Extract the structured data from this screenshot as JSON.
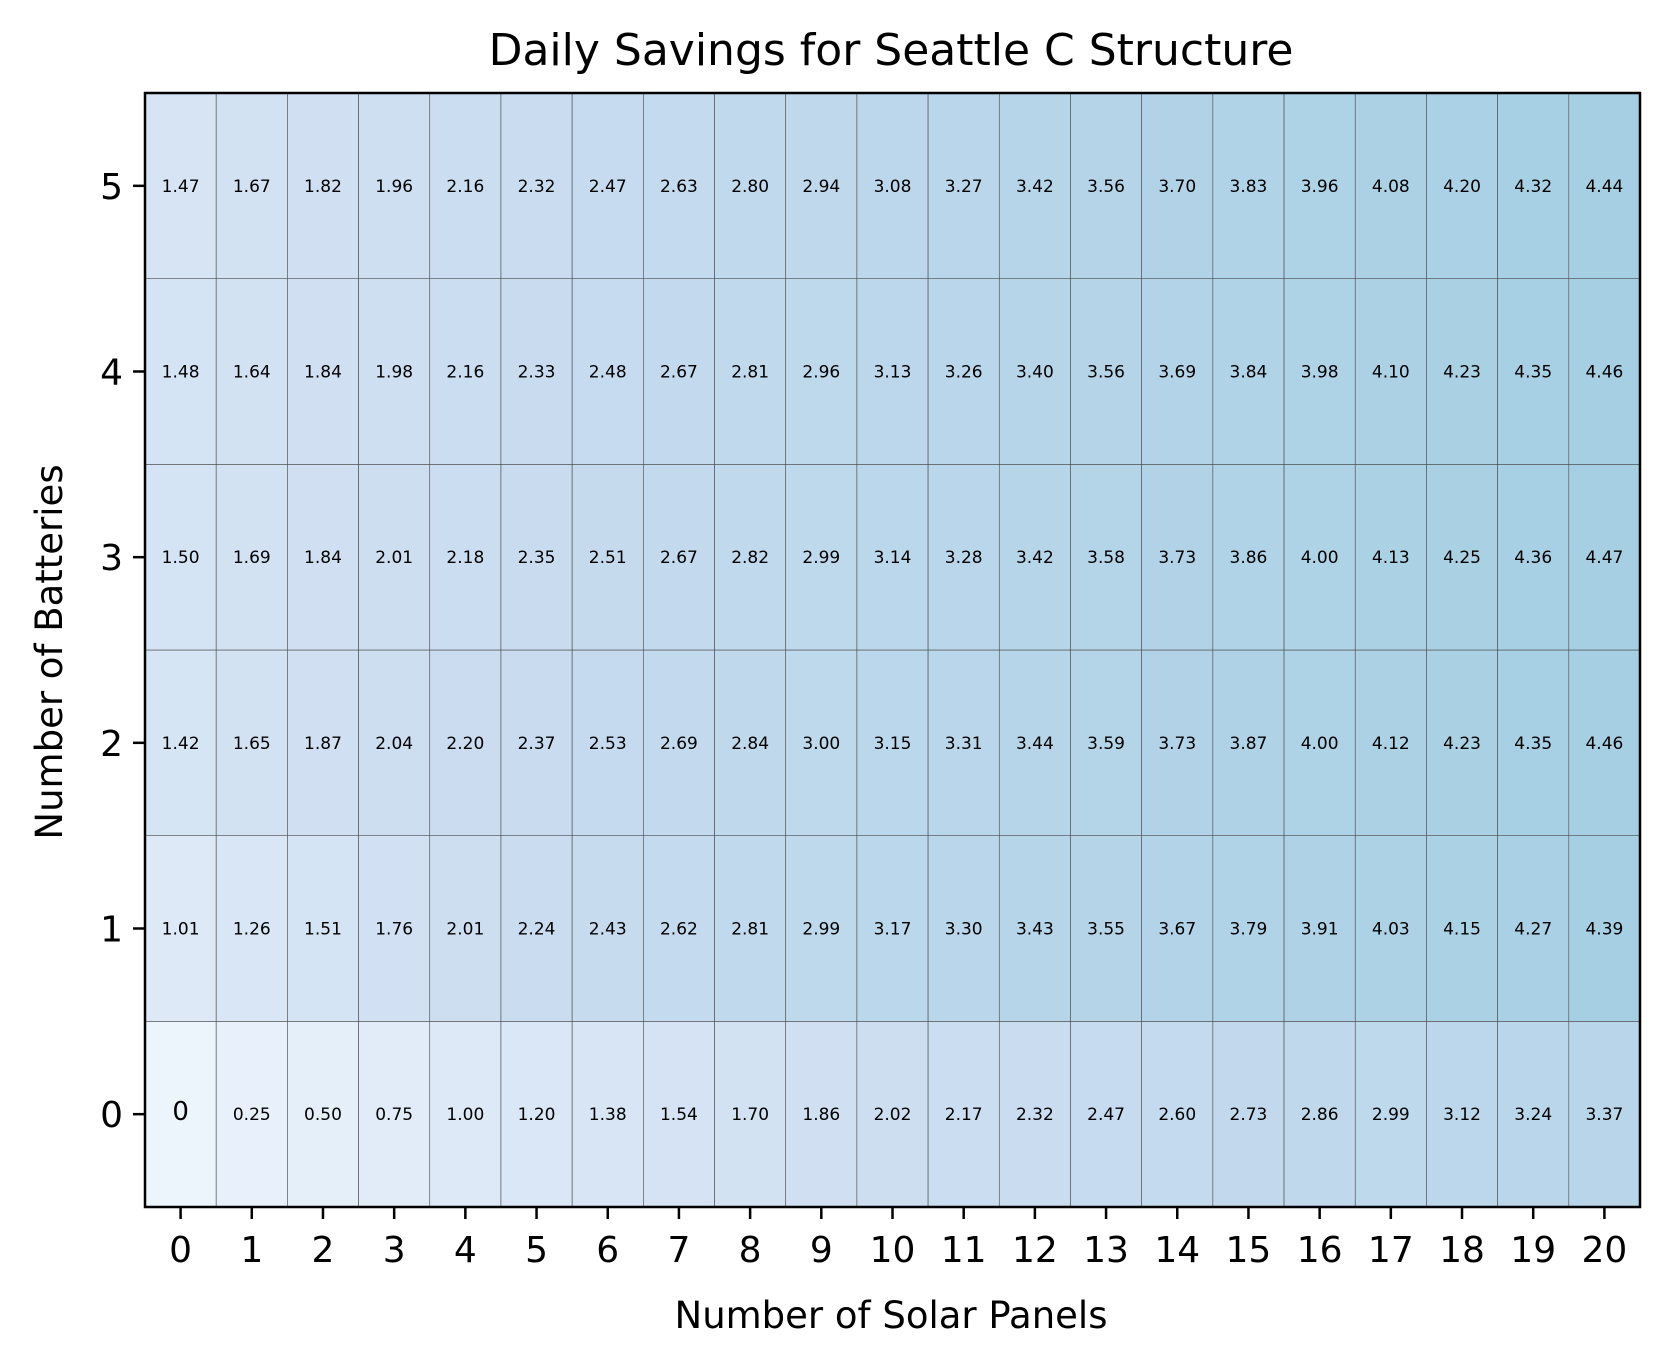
{
  "chart_data": {
    "type": "heatmap",
    "title": "Daily Savings for Seattle C Structure",
    "xlabel": "Number of Solar Panels",
    "ylabel": "Number of Batteries",
    "x": [
      "0",
      "1",
      "2",
      "3",
      "4",
      "5",
      "6",
      "7",
      "8",
      "9",
      "10",
      "11",
      "12",
      "13",
      "14",
      "15",
      "16",
      "17",
      "18",
      "19",
      "20"
    ],
    "y": [
      "0",
      "1",
      "2",
      "3",
      "4",
      "5"
    ],
    "values": [
      [
        "0",
        "0.25",
        "0.50",
        "0.75",
        "1.00",
        "1.20",
        "1.38",
        "1.54",
        "1.70",
        "1.86",
        "2.02",
        "2.17",
        "2.32",
        "2.47",
        "2.60",
        "2.73",
        "2.86",
        "2.99",
        "3.12",
        "3.24",
        "3.37"
      ],
      [
        "1.01",
        "1.26",
        "1.51",
        "1.76",
        "2.01",
        "2.24",
        "2.43",
        "2.62",
        "2.81",
        "2.99",
        "3.17",
        "3.30",
        "3.43",
        "3.55",
        "3.67",
        "3.79",
        "3.91",
        "4.03",
        "4.15",
        "4.27",
        "4.39"
      ],
      [
        "1.42",
        "1.65",
        "1.87",
        "2.04",
        "2.20",
        "2.37",
        "2.53",
        "2.69",
        "2.84",
        "3.00",
        "3.15",
        "3.31",
        "3.44",
        "3.59",
        "3.73",
        "3.87",
        "4.00",
        "4.12",
        "4.23",
        "4.35",
        "4.46"
      ],
      [
        "1.50",
        "1.69",
        "1.84",
        "2.01",
        "2.18",
        "2.35",
        "2.51",
        "2.67",
        "2.82",
        "2.99",
        "3.14",
        "3.28",
        "3.42",
        "3.58",
        "3.73",
        "3.86",
        "4.00",
        "4.13",
        "4.25",
        "4.36",
        "4.47"
      ],
      [
        "1.48",
        "1.64",
        "1.84",
        "1.98",
        "2.16",
        "2.33",
        "2.48",
        "2.67",
        "2.81",
        "2.96",
        "3.13",
        "3.26",
        "3.40",
        "3.56",
        "3.69",
        "3.84",
        "3.98",
        "4.10",
        "4.23",
        "4.35",
        "4.46"
      ],
      [
        "1.47",
        "1.67",
        "1.82",
        "1.96",
        "2.16",
        "2.32",
        "2.47",
        "2.63",
        "2.80",
        "2.94",
        "3.08",
        "3.27",
        "3.42",
        "3.56",
        "3.70",
        "3.83",
        "3.96",
        "4.08",
        "4.20",
        "4.32",
        "4.44"
      ]
    ],
    "colormap": [
      "#ecf4fc",
      "#cadcf0",
      "#a6cfe3"
    ],
    "color_range": [
      0,
      4.47
    ],
    "grid": true
  }
}
